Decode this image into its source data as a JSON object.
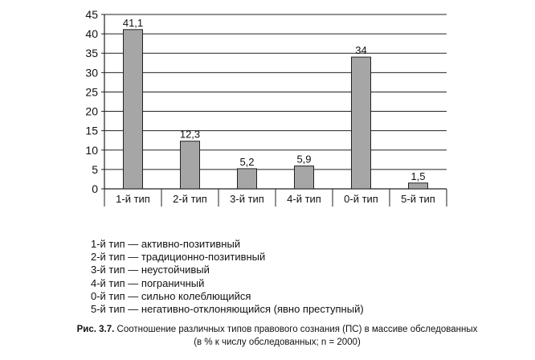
{
  "chart_data": {
    "type": "bar",
    "categories": [
      "1-й тип",
      "2-й тип",
      "3-й тип",
      "4-й тип",
      "0-й тип",
      "5-й тип"
    ],
    "values": [
      41.1,
      12.3,
      5.2,
      5.9,
      34,
      1.5
    ],
    "value_labels": [
      "41,1",
      "12,3",
      "5,2",
      "5,9",
      "34",
      "1,5"
    ],
    "y_ticks": [
      "0",
      "5",
      "10",
      "15",
      "20",
      "25",
      "30",
      "35",
      "40",
      "45"
    ],
    "ylim": [
      0,
      45
    ],
    "grid": true,
    "bar_color": "#a6a6a6",
    "title": "",
    "xlabel": "",
    "ylabel": ""
  },
  "legend": [
    "1-й тип — активно-позитивный",
    "2-й тип — традиционно-позитивный",
    "3-й тип — неустойчивый",
    "4-й тип — пограничный",
    "0-й тип — сильно колеблющийся",
    "5-й тип — негативно-отклоняющийся (явно преступный)"
  ],
  "caption": {
    "figure_label": "Рис. 3.7.",
    "line1": "Соотношение различных типов правового сознания (ПС) в массиве обследованных",
    "line2": "(в % к числу обследованных; n = 2000)"
  }
}
